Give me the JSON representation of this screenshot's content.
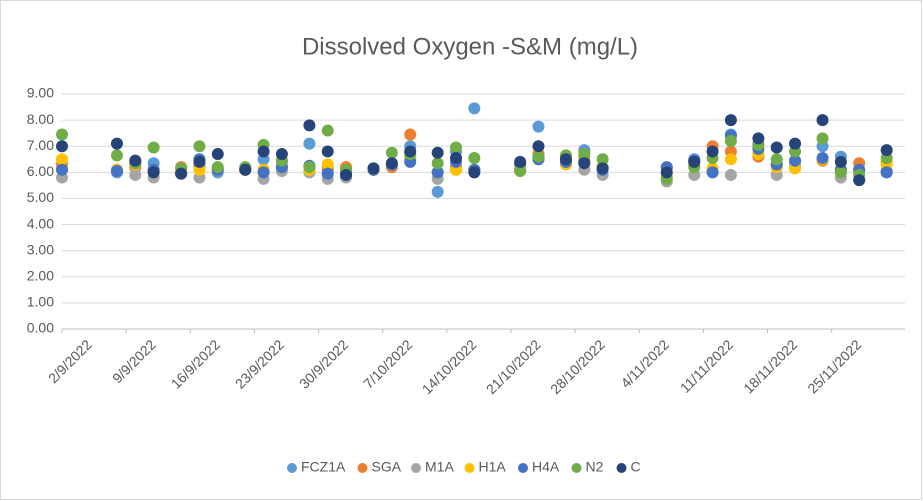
{
  "chart_data": {
    "type": "scatter",
    "title": "Dissolved Oxygen -S&M (mg/L)",
    "x": [
      "2022-09-02",
      "2022-09-08",
      "2022-09-10",
      "2022-09-12",
      "2022-09-15",
      "2022-09-17",
      "2022-09-19",
      "2022-09-22",
      "2022-09-24",
      "2022-09-26",
      "2022-09-29",
      "2022-10-01",
      "2022-10-03",
      "2022-10-06",
      "2022-10-08",
      "2022-10-10",
      "2022-10-13",
      "2022-10-15",
      "2022-10-17",
      "2022-10-22",
      "2022-10-24",
      "2022-10-27",
      "2022-10-29",
      "2022-10-31",
      "2022-11-07",
      "2022-11-10",
      "2022-11-12",
      "2022-11-14",
      "2022-11-17",
      "2022-11-19",
      "2022-11-21",
      "2022-11-24",
      "2022-11-26",
      "2022-11-28",
      "2022-12-01"
    ],
    "series": [
      {
        "name": "FCZ1A",
        "color": "#5b9bd5",
        "values": [
          6.1,
          6.0,
          6.2,
          6.35,
          5.95,
          6.3,
          6.0,
          6.1,
          6.5,
          6.4,
          7.1,
          6.1,
          6.0,
          6.1,
          6.3,
          7.0,
          5.25,
          6.8,
          8.45,
          6.3,
          7.75,
          6.4,
          6.85,
          6.2,
          6.15,
          6.5,
          6.1,
          7.45,
          7.1,
          6.3,
          6.4,
          7.0,
          6.6,
          6.1,
          6.05
        ]
      },
      {
        "name": "SGA",
        "color": "#ed7d31",
        "values": [
          6.3,
          6.1,
          6.2,
          6.1,
          6.2,
          6.2,
          6.1,
          6.15,
          6.1,
          6.2,
          6.05,
          6.15,
          6.2,
          6.1,
          6.2,
          7.45,
          6.0,
          6.2,
          6.1,
          6.1,
          6.7,
          6.6,
          6.6,
          6.2,
          5.8,
          6.3,
          7.0,
          6.8,
          6.6,
          6.2,
          6.2,
          6.45,
          6.1,
          6.35,
          6.4
        ]
      },
      {
        "name": "M1A",
        "color": "#a5a5a5",
        "values": [
          5.8,
          6.05,
          5.9,
          5.8,
          6.0,
          5.8,
          6.1,
          6.1,
          5.75,
          6.05,
          6.0,
          5.75,
          5.8,
          6.1,
          6.3,
          6.55,
          5.75,
          6.1,
          6.1,
          6.1,
          6.5,
          6.45,
          6.1,
          5.9,
          5.65,
          5.9,
          6.1,
          5.9,
          6.7,
          5.9,
          6.2,
          6.5,
          5.8,
          5.7,
          6.0
        ]
      },
      {
        "name": "H1A",
        "color": "#ffc000",
        "values": [
          6.5,
          6.1,
          6.3,
          6.0,
          6.0,
          6.1,
          6.1,
          6.1,
          6.1,
          6.2,
          6.1,
          6.3,
          6.1,
          6.1,
          6.3,
          6.6,
          6.0,
          6.1,
          6.1,
          6.05,
          6.55,
          6.3,
          6.4,
          6.2,
          5.9,
          6.3,
          6.15,
          6.5,
          6.7,
          6.2,
          6.15,
          6.5,
          6.1,
          6.0,
          6.3
        ]
      },
      {
        "name": "H4A",
        "color": "#4472c4",
        "values": [
          6.1,
          6.05,
          6.35,
          6.1,
          5.95,
          6.5,
          6.1,
          6.1,
          6.0,
          6.2,
          6.25,
          5.95,
          5.95,
          6.1,
          6.3,
          6.4,
          6.0,
          6.4,
          6.1,
          6.35,
          6.5,
          6.4,
          6.4,
          6.1,
          6.2,
          6.45,
          6.0,
          7.4,
          6.9,
          6.3,
          6.45,
          6.55,
          6.1,
          6.1,
          6.0
        ]
      },
      {
        "name": "N2",
        "color": "#70ad47",
        "values": [
          7.45,
          6.65,
          6.35,
          6.95,
          6.15,
          7.0,
          6.2,
          6.2,
          7.05,
          6.45,
          6.2,
          7.6,
          6.1,
          6.15,
          6.75,
          6.7,
          6.35,
          6.95,
          6.55,
          6.05,
          6.6,
          6.65,
          6.7,
          6.5,
          5.75,
          6.2,
          6.55,
          7.2,
          7.05,
          6.5,
          6.8,
          7.3,
          6.0,
          5.9,
          6.55
        ]
      },
      {
        "name": "C",
        "color": "#264478",
        "values": [
          7.0,
          7.1,
          6.45,
          6.0,
          5.95,
          6.4,
          6.7,
          6.1,
          6.8,
          6.7,
          7.8,
          6.8,
          5.9,
          6.15,
          6.35,
          6.8,
          6.75,
          6.55,
          6.0,
          6.4,
          7.0,
          6.5,
          6.35,
          6.15,
          6.0,
          6.4,
          6.8,
          8.0,
          7.3,
          6.95,
          7.1,
          8.0,
          6.4,
          5.7,
          6.85
        ]
      }
    ],
    "xlim": [
      "2022-09-02",
      "2022-12-03"
    ],
    "xticks": [
      {
        "value": "2022-09-02",
        "label": "2/9/2022"
      },
      {
        "value": "2022-09-09",
        "label": "9/9/2022"
      },
      {
        "value": "2022-09-16",
        "label": "16/9/2022"
      },
      {
        "value": "2022-09-23",
        "label": "23/9/2022"
      },
      {
        "value": "2022-09-30",
        "label": "30/9/2022"
      },
      {
        "value": "2022-10-07",
        "label": "7/10/2022"
      },
      {
        "value": "2022-10-14",
        "label": "14/10/2022"
      },
      {
        "value": "2022-10-21",
        "label": "21/10/2022"
      },
      {
        "value": "2022-10-28",
        "label": "28/10/2022"
      },
      {
        "value": "2022-11-04",
        "label": "4/11/2022"
      },
      {
        "value": "2022-11-11",
        "label": "11/11/2022"
      },
      {
        "value": "2022-11-18",
        "label": "18/11/2022"
      },
      {
        "value": "2022-11-25",
        "label": "25/11/2022"
      }
    ],
    "ylim": [
      0,
      9
    ],
    "yticks": [
      {
        "value": 0,
        "label": "0.00"
      },
      {
        "value": 1,
        "label": "1.00"
      },
      {
        "value": 2,
        "label": "2.00"
      },
      {
        "value": 3,
        "label": "3.00"
      },
      {
        "value": 4,
        "label": "4.00"
      },
      {
        "value": 5,
        "label": "5.00"
      },
      {
        "value": 6,
        "label": "6.00"
      },
      {
        "value": 7,
        "label": "7.00"
      },
      {
        "value": 8,
        "label": "8.00"
      },
      {
        "value": 9,
        "label": "9.00"
      }
    ],
    "grid": true,
    "legend": "bottom"
  }
}
